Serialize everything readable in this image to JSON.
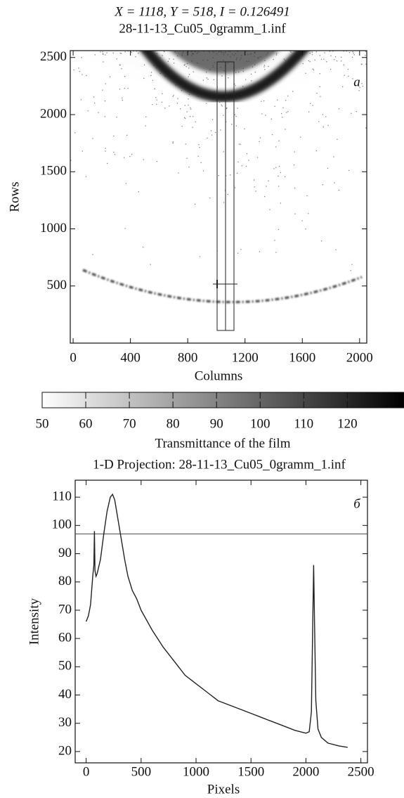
{
  "chart_data": [
    {
      "type": "image",
      "title": "X = 1118, Y = 518, I = 0.126491",
      "subtitle": "28-11-13_Cu05_0gramm_1.inf",
      "xlabel": "Columns",
      "ylabel": "Rows",
      "annotation": "а",
      "xlim": [
        -20,
        2050
      ],
      "ylim": [
        0,
        2560
      ],
      "xticks": [
        0,
        400,
        800,
        1200,
        1600,
        2000
      ],
      "yticks": [
        500,
        1000,
        1500,
        2000,
        2500
      ]
    },
    {
      "type": "colorbar",
      "label": "Transmittance of the film",
      "lim": [
        50,
        133
      ],
      "ticks": [
        50,
        60,
        70,
        80,
        90,
        100,
        110,
        120
      ]
    },
    {
      "type": "line",
      "title": "1-D  Projection: 28-11-13_Cu05_0gramm_1.inf",
      "xlabel": "Pixels",
      "ylabel": "Intensity",
      "annotation": "б",
      "color": "#222222",
      "x": [
        0,
        20,
        40,
        60,
        70,
        75,
        80,
        90,
        100,
        130,
        160,
        190,
        220,
        240,
        260,
        290,
        320,
        350,
        380,
        420,
        460,
        500,
        600,
        700,
        800,
        900,
        1000,
        1100,
        1200,
        1300,
        1400,
        1500,
        1600,
        1700,
        1800,
        1900,
        1950,
        2000,
        2030,
        2050,
        2060,
        2070,
        2080,
        2090,
        2110,
        2140,
        2200,
        2300,
        2380
      ],
      "values": [
        66,
        68,
        72,
        82,
        86,
        98,
        84,
        82,
        83,
        88,
        97,
        105,
        110,
        111,
        109,
        102,
        95,
        88,
        82,
        77,
        74,
        70,
        63,
        57,
        52,
        47,
        44,
        41,
        38,
        36.5,
        35,
        33.5,
        32,
        30.5,
        29,
        27.5,
        27,
        26.5,
        27,
        34,
        60,
        86,
        62,
        38,
        28,
        25,
        23,
        22,
        21.5
      ],
      "hline": 97,
      "xlim": [
        -100,
        2560
      ],
      "ylim": [
        16,
        116
      ],
      "xticks": [
        0,
        500,
        1000,
        1500,
        2000,
        2500
      ],
      "yticks": [
        20,
        30,
        40,
        50,
        60,
        70,
        80,
        90,
        100,
        110
      ]
    }
  ]
}
